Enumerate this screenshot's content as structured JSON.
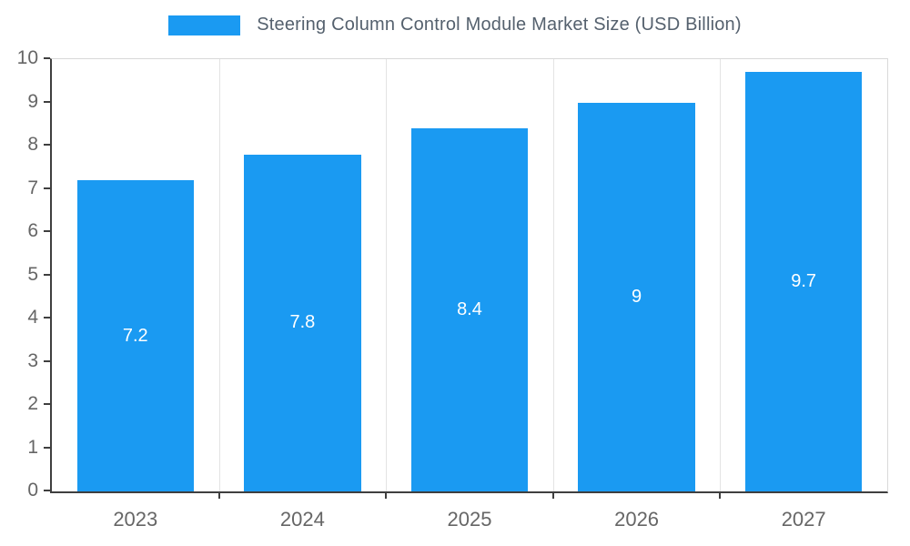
{
  "chart_data": {
    "type": "bar",
    "title": "Steering Column Control Module Market Size (USD Billion)",
    "categories": [
      "2023",
      "2024",
      "2025",
      "2026",
      "2027"
    ],
    "values": [
      7.2,
      7.8,
      8.4,
      9,
      9.7
    ],
    "labels": [
      "7.2",
      "7.8",
      "8.4",
      "9",
      "9.7"
    ],
    "xlabel": "",
    "ylabel": "",
    "ylim": [
      0,
      10
    ],
    "yticks": [
      0,
      1,
      2,
      3,
      4,
      5,
      6,
      7,
      8,
      9,
      10
    ],
    "legend_position": "top",
    "grid": "vertical-category-boundaries",
    "bar_color": "#1A9AF2",
    "data_label_color": "#FFFFFF",
    "title_color": "#55616E",
    "axis_label_color": "#666666",
    "axis_line_color": "#3F3F3F",
    "gridline_color": "#E3E3E3",
    "background_color": "#FFFFFF"
  }
}
